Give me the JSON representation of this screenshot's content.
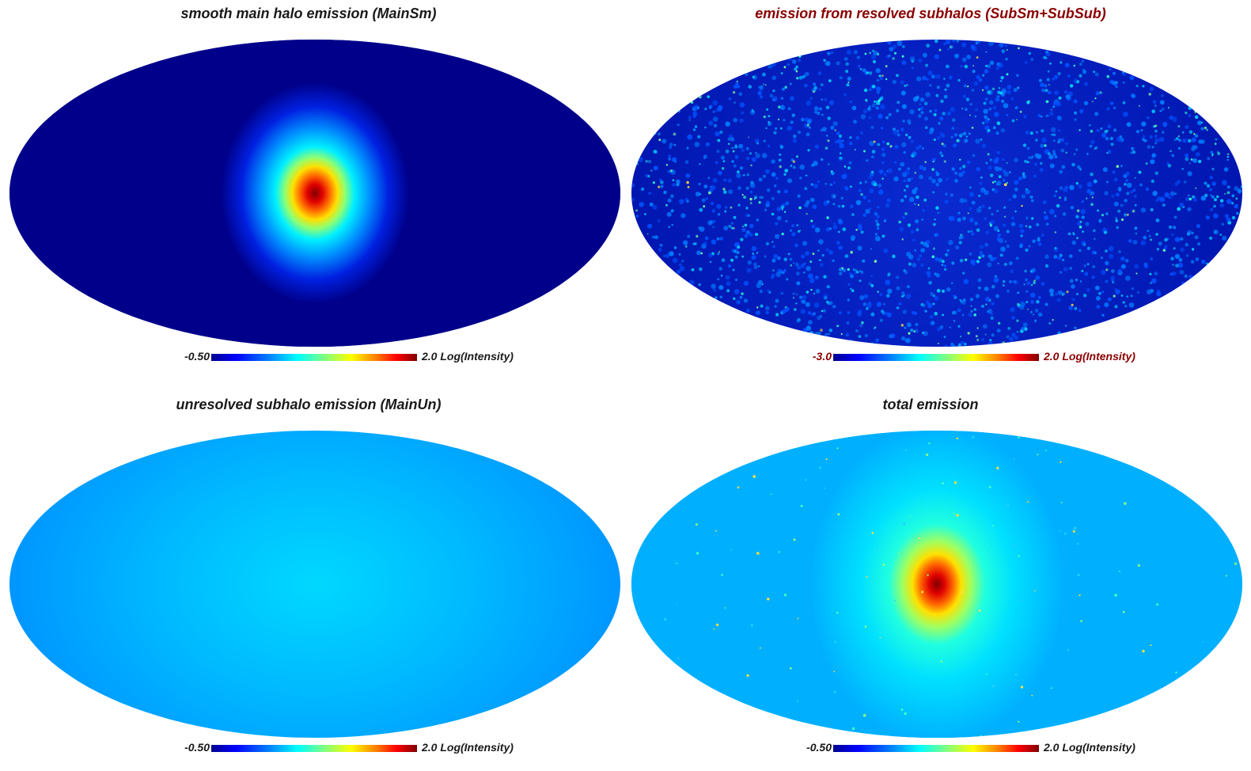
{
  "panels": [
    {
      "title": "smooth main halo emission (MainSm)",
      "title_color": "#1a1a1a",
      "colorbar": {
        "min_label": "-0.50",
        "max_label": "2.0 Log(Intensity)",
        "label_color": "#1a1a1a"
      },
      "map_style": "central-peak-on-dark"
    },
    {
      "title": "emission from resolved subhalos (SubSm+SubSub)",
      "title_color": "#8b0000",
      "colorbar": {
        "min_label": "-3.0",
        "max_label": "2.0 Log(Intensity)",
        "label_color": "#8b0000"
      },
      "map_style": "speckled-subhalos"
    },
    {
      "title": "unresolved subhalo emission (MainUn)",
      "title_color": "#1a1a1a",
      "colorbar": {
        "min_label": "-0.50",
        "max_label": "2.0 Log(Intensity)",
        "label_color": "#1a1a1a"
      },
      "map_style": "smooth-light-blue"
    },
    {
      "title": "total emission",
      "title_color": "#1a1a1a",
      "colorbar": {
        "min_label": "-0.50",
        "max_label": "2.0 Log(Intensity)",
        "label_color": "#1a1a1a"
      },
      "map_style": "central-peak-on-cyan"
    }
  ]
}
